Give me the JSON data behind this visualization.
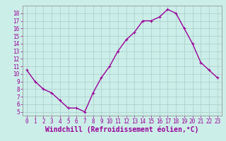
{
  "x": [
    0,
    1,
    2,
    3,
    4,
    5,
    6,
    7,
    8,
    9,
    10,
    11,
    12,
    13,
    14,
    15,
    16,
    17,
    18,
    19,
    20,
    21,
    22,
    23
  ],
  "y": [
    10.5,
    9.0,
    8.0,
    7.5,
    6.5,
    5.5,
    5.5,
    5.0,
    7.5,
    9.5,
    11.0,
    13.0,
    14.5,
    15.5,
    17.0,
    17.0,
    17.5,
    18.5,
    18.0,
    16.0,
    14.0,
    11.5,
    10.5,
    9.5
  ],
  "line_color": "#990099",
  "marker": "+",
  "marker_size": 3,
  "bg_color": "#cceee8",
  "grid_color": "#aacccc",
  "xlabel": "Windchill (Refroidissement éolien,°C)",
  "ylabel": "",
  "xlim": [
    -0.5,
    23.5
  ],
  "ylim": [
    4.5,
    19.0
  ],
  "yticks": [
    5,
    6,
    7,
    8,
    9,
    10,
    11,
    12,
    13,
    14,
    15,
    16,
    17,
    18
  ],
  "xticks": [
    0,
    1,
    2,
    3,
    4,
    5,
    6,
    7,
    8,
    9,
    10,
    11,
    12,
    13,
    14,
    15,
    16,
    17,
    18,
    19,
    20,
    21,
    22,
    23
  ],
  "tick_color": "#990099",
  "tick_fontsize": 5.5,
  "xlabel_fontsize": 7.0,
  "line_width": 1.0
}
